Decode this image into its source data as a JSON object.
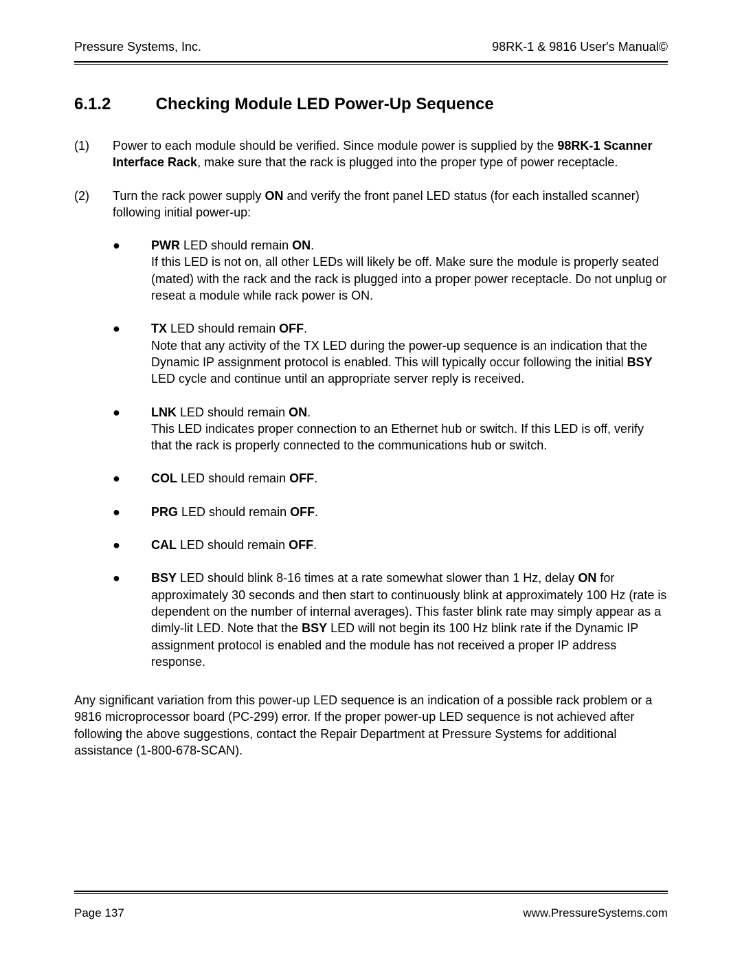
{
  "header": {
    "left": "Pressure Systems, Inc.",
    "right": "98RK-1 & 9816 User's Manual©"
  },
  "section": {
    "number": "6.1.2",
    "title": "Checking Module LED Power-Up Sequence"
  },
  "paras": [
    {
      "num": "(1)",
      "html": "Power to each module should be verified.  Since module power is supplied by the <b>98RK-1 Scanner Interface Rack</b>, make sure that the rack is plugged into the proper type of power receptacle."
    },
    {
      "num": "(2)",
      "html": "Turn the rack power supply <b>ON</b> and verify the front panel LED status (for each installed scanner) following initial power-up:"
    }
  ],
  "bullets": [
    {
      "lead_html": "<b>PWR</b> LED should remain <b>ON</b>.",
      "body_html": "If this LED is not on, all other LEDs will likely be off.  Make sure the module is properly seated (mated) with the rack and the rack is plugged into a proper power receptacle.  Do not unplug or reseat a module while rack power is ON."
    },
    {
      "lead_html": "<b>TX</b> LED should remain <b>OFF</b>.",
      "body_html": "Note that any activity of the TX LED during the power-up sequence is an indication that the Dynamic IP assignment protocol is enabled.  This will typically occur following the initial <b>BSY</b> LED cycle and continue until an appropriate server reply is received."
    },
    {
      "lead_html": "<b>LNK</b> LED should remain <b>ON</b>.",
      "body_html": "This LED indicates proper connection to an Ethernet hub or switch.  If this LED is off, verify that the rack is properly connected to the communications hub or switch."
    },
    {
      "lead_html": "<b>COL</b> LED should remain <b>OFF</b>.",
      "body_html": ""
    },
    {
      "lead_html": "<b>PRG</b> LED should remain <b>OFF</b>.",
      "body_html": ""
    },
    {
      "lead_html": "<b>CAL</b> LED should remain <b>OFF</b>.",
      "body_html": ""
    },
    {
      "lead_html": "<b>BSY</b>  LED should blink 8-16 times at a rate somewhat slower than 1 Hz, delay <b>ON</b>",
      "body_html": "for approximately 30 seconds and then start to continuously blink at approximately 100 Hz (rate is dependent on the number of internal averages).  This faster blink rate may simply appear as a dimly-lit LED.  Note that the <b>BSY</b> LED will not begin its 100 Hz blink rate if the Dynamic IP assignment protocol is enabled and the module has not received a proper IP address response."
    }
  ],
  "closing_html": "Any significant variation from this power-up LED sequence is an indication of a possible rack problem or a 9816 microprocessor board (PC-299) error.  If the proper power-up LED sequence is not achieved after following the above suggestions, contact the Repair Department at Pressure Systems for additional assistance (1-800-678-SCAN).",
  "footer": {
    "left": "Page 137",
    "right": "www.PressureSystems.com"
  },
  "bullet_char": "●"
}
